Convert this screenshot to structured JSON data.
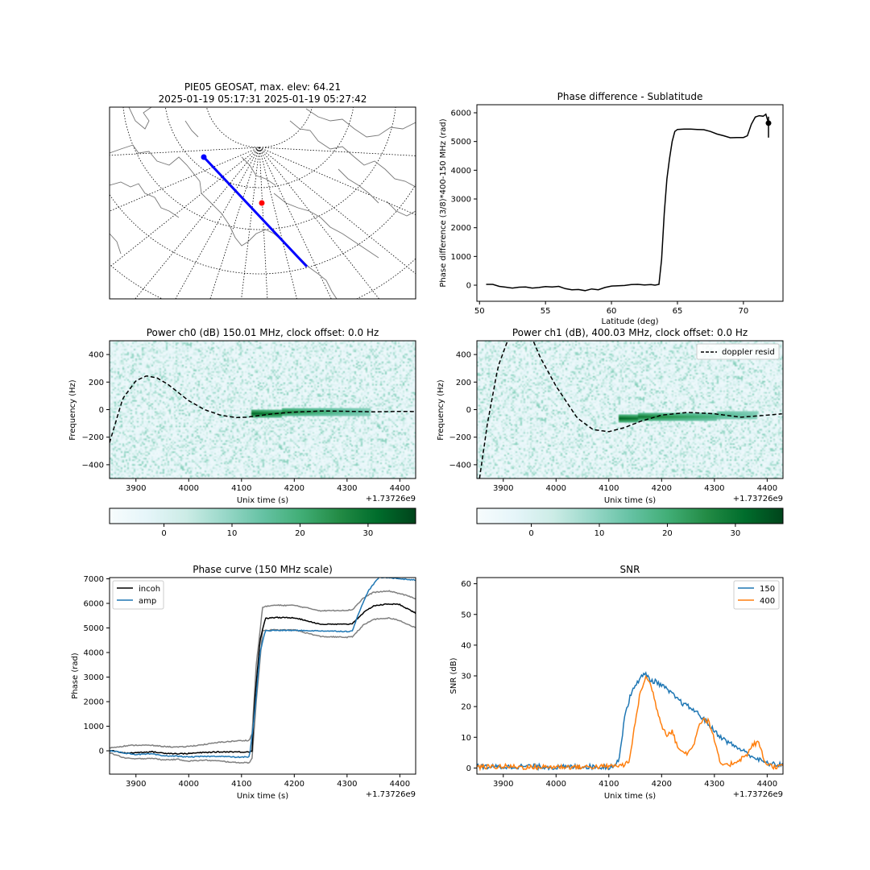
{
  "chart_data": [
    {
      "id": "map",
      "type": "map",
      "title_line1": "PIE05 GEOSAT, max. elev: 64.21",
      "title_line2": "2025-01-19 05:17:31 2025-01-19 05:27:42",
      "track_color": "#0000ff",
      "station_color": "#ff0000",
      "grid": true
    },
    {
      "id": "phase_lat",
      "type": "line",
      "title": "Phase difference - Sublatitude",
      "xlabel": "Latitude (deg)",
      "ylabel": "Phase difference (3/8)*400-150 MHz (rad)",
      "xlim": [
        49.8,
        73.0
      ],
      "ylim": [
        -560,
        6280
      ],
      "xticks": [
        50,
        55,
        60,
        65,
        70
      ],
      "yticks": [
        0,
        1000,
        2000,
        3000,
        4000,
        5000,
        6000
      ],
      "series": [
        {
          "color": "#000000",
          "x": [
            50.5,
            51.0,
            51.5,
            52.0,
            52.5,
            53.0,
            53.5,
            54.0,
            54.5,
            55.0,
            55.5,
            56.0,
            56.5,
            57.0,
            57.5,
            58.0,
            58.5,
            59.0,
            59.5,
            60.0,
            60.5,
            61.0,
            61.5,
            62.0,
            62.5,
            63.0,
            63.3,
            63.6,
            63.8,
            64.0,
            64.2,
            64.4,
            64.6,
            64.8,
            65.0,
            65.5,
            66.0,
            66.5,
            67.0,
            67.5,
            68.0,
            68.5,
            69.0,
            69.5,
            70.0,
            70.3,
            70.6,
            70.9,
            71.2,
            71.5,
            71.7,
            71.9
          ],
          "y": [
            30,
            30,
            -40,
            -70,
            -100,
            -70,
            -60,
            -100,
            -80,
            -50,
            -60,
            -40,
            -120,
            -160,
            -150,
            -190,
            -130,
            -160,
            -80,
            -30,
            -20,
            -10,
            20,
            30,
            10,
            20,
            0,
            30,
            900,
            2500,
            3700,
            4400,
            5000,
            5350,
            5420,
            5430,
            5430,
            5420,
            5410,
            5350,
            5260,
            5200,
            5130,
            5140,
            5140,
            5200,
            5600,
            5850,
            5900,
            5880,
            5950,
            5640
          ]
        }
      ],
      "endpoint": {
        "x": 71.9,
        "y": 5640
      }
    },
    {
      "id": "power_ch0",
      "type": "heatmap",
      "title": "Power ch0 (dB) 150.01 MHz, clock offset: 0.0 Hz",
      "xlabel": "Unix time (s)",
      "ylabel": "Frequency (Hz)",
      "offset_label": "+1.73726e9",
      "xlim": [
        3850,
        4430
      ],
      "ylim": [
        -500,
        500
      ],
      "xticks": [
        3900,
        4000,
        4100,
        4200,
        4300,
        4400
      ],
      "yticks": [
        -400,
        -200,
        0,
        200,
        400
      ],
      "colorbar": {
        "cmin": -8,
        "cmax": 37,
        "ticks": [
          0,
          10,
          20,
          30
        ],
        "colors": [
          "#f7fcfd",
          "#e5f5f9",
          "#ccece6",
          "#99d8c9",
          "#66c2a4",
          "#41ae76",
          "#238b45",
          "#006d2c",
          "#00441b"
        ]
      },
      "doppler_curve": {
        "x": [
          3850,
          3875,
          3900,
          3920,
          3940,
          3960,
          3980,
          4000,
          4030,
          4060,
          4090,
          4110,
          4130,
          4160,
          4200,
          4250,
          4300,
          4350,
          4400,
          4430
        ],
        "y": [
          -240,
          80,
          210,
          245,
          230,
          185,
          125,
          65,
          0,
          -40,
          -58,
          -55,
          -45,
          -30,
          -18,
          -10,
          -12,
          -16,
          -13,
          -14
        ]
      },
      "signal_band": {
        "x_start": 4120,
        "x_end": 4345,
        "y_start": -20,
        "y_end": -10
      }
    },
    {
      "id": "power_ch1",
      "type": "heatmap",
      "title": "Power ch1 (dB), 400.03 MHz, clock offset: 0.0 Hz",
      "xlabel": "Unix time (s)",
      "ylabel": "Frequency (Hz)",
      "offset_label": "+1.73726e9",
      "xlim": [
        3850,
        4430
      ],
      "ylim": [
        -500,
        500
      ],
      "xticks": [
        3900,
        4000,
        4100,
        4200,
        4300,
        4400
      ],
      "yticks": [
        -400,
        -200,
        0,
        200,
        400
      ],
      "legend": {
        "entries": [
          "doppler resid"
        ],
        "placement": "upper right"
      },
      "colorbar": {
        "cmin": -8,
        "cmax": 37,
        "ticks": [
          0,
          10,
          20,
          30
        ],
        "colors": [
          "#f7fcfd",
          "#e5f5f9",
          "#ccece6",
          "#99d8c9",
          "#66c2a4",
          "#41ae76",
          "#238b45",
          "#006d2c",
          "#00441b"
        ]
      },
      "doppler_curve": {
        "x": [
          3855,
          3870,
          3890,
          3910,
          3930,
          3950,
          3970,
          4000,
          4040,
          4070,
          4100,
          4130,
          4160,
          4200,
          4250,
          4300,
          4350,
          4400,
          4430
        ],
        "y": [
          -500,
          -100,
          310,
          520,
          660,
          560,
          380,
          170,
          -60,
          -145,
          -160,
          -130,
          -85,
          -40,
          -20,
          -30,
          -55,
          -40,
          -30
        ]
      },
      "signal_band": {
        "x_start": 4120,
        "x_end": 4380,
        "y_start": -55,
        "y_end": -35
      }
    },
    {
      "id": "phase_curve",
      "type": "line",
      "title": "Phase curve (150 MHz scale)",
      "xlabel": "Unix time (s)",
      "ylabel": "Phase (rad)",
      "offset_label": "+1.73726e9",
      "xlim": [
        3850,
        4430
      ],
      "ylim": [
        -950,
        7050
      ],
      "xticks": [
        3900,
        4000,
        4100,
        4200,
        4300,
        4400
      ],
      "yticks": [
        0,
        1000,
        2000,
        3000,
        4000,
        5000,
        6000,
        7000
      ],
      "legend": {
        "entries": [
          "incoh",
          "amp"
        ],
        "placement": "upper left"
      },
      "series": [
        {
          "name": "incoh",
          "color": "#000000",
          "x": [
            3850,
            3880,
            3900,
            3930,
            3950,
            3980,
            4000,
            4020,
            4050,
            4080,
            4100,
            4115,
            4120,
            4125,
            4135,
            4145,
            4160,
            4200,
            4250,
            4300,
            4310,
            4330,
            4350,
            4380,
            4400,
            4430
          ],
          "y": [
            20,
            -100,
            -70,
            -40,
            -90,
            -120,
            -110,
            -80,
            -50,
            -40,
            -50,
            -40,
            0,
            2000,
            4500,
            5380,
            5420,
            5420,
            5150,
            5150,
            5180,
            5600,
            5900,
            5980,
            5950,
            5600
          ]
        },
        {
          "name": "amp",
          "color": "#1f77b4",
          "x": [
            3850,
            3870,
            3900,
            3930,
            3950,
            3980,
            4000,
            4030,
            4060,
            4090,
            4115,
            4125,
            4135,
            4145,
            4160,
            4200,
            4250,
            4300,
            4310,
            4320,
            4340,
            4360,
            4380,
            4400,
            4430
          ],
          "y": [
            0,
            -60,
            -150,
            -130,
            -200,
            -220,
            -250,
            -230,
            -220,
            -260,
            -250,
            1500,
            4000,
            4880,
            4900,
            4900,
            4880,
            4860,
            4870,
            5500,
            6500,
            7050,
            7050,
            7000,
            6950
          ]
        },
        {
          "name": "",
          "color": "#808080",
          "x": [
            3850,
            3880,
            3900,
            3930,
            3950,
            3980,
            4000,
            4030,
            4060,
            4090,
            4115,
            4120,
            4128,
            4140,
            4160,
            4200,
            4250,
            4300,
            4310,
            4330,
            4350,
            4380,
            4400,
            4430
          ],
          "y": [
            120,
            200,
            230,
            220,
            180,
            150,
            180,
            260,
            350,
            400,
            430,
            700,
            3500,
            5850,
            5920,
            5920,
            5700,
            5720,
            5740,
            6200,
            6450,
            6500,
            6400,
            6200
          ]
        },
        {
          "name": "",
          "color": "#808080",
          "x": [
            3850,
            3880,
            3900,
            3930,
            3950,
            3980,
            4000,
            4030,
            4060,
            4090,
            4115,
            4120,
            4128,
            4140,
            4160,
            4200,
            4250,
            4300,
            4310,
            4330,
            4350,
            4380,
            4400,
            4430
          ],
          "y": [
            -80,
            -300,
            -330,
            -300,
            -370,
            -350,
            -420,
            -380,
            -420,
            -480,
            -480,
            -300,
            2000,
            4900,
            4920,
            4920,
            4650,
            4620,
            4640,
            5100,
            5350,
            5400,
            5300,
            5000
          ]
        }
      ]
    },
    {
      "id": "snr",
      "type": "line",
      "title": "SNR",
      "xlabel": "Unix time (s)",
      "ylabel": "SNR (dB)",
      "offset_label": "+1.73726e9",
      "xlim": [
        3850,
        4430
      ],
      "ylim": [
        -2,
        62
      ],
      "xticks": [
        3900,
        4000,
        4100,
        4200,
        4300,
        4400
      ],
      "yticks": [
        0,
        10,
        20,
        30,
        40,
        50,
        60
      ],
      "legend": {
        "entries": [
          "150",
          "400"
        ],
        "placement": "upper right"
      },
      "series": [
        {
          "name": "150",
          "color": "#1f77b4",
          "x": [
            3850,
            3900,
            3950,
            4000,
            4050,
            4100,
            4110,
            4118,
            4125,
            4130,
            4140,
            4150,
            4160,
            4170,
            4180,
            4190,
            4200,
            4220,
            4240,
            4260,
            4280,
            4300,
            4320,
            4340,
            4360,
            4380,
            4400,
            4420,
            4430
          ],
          "y": [
            0.5,
            0.3,
            0.6,
            0.2,
            0.5,
            0.3,
            0.8,
            2,
            10,
            17,
            23,
            27,
            29.5,
            30.5,
            28.5,
            28,
            27,
            24,
            21,
            19,
            16,
            12,
            9,
            7,
            5,
            3,
            1.5,
            1,
            1.5
          ]
        },
        {
          "name": "400",
          "color": "#ff7f0e",
          "x": [
            3850,
            3900,
            3950,
            4000,
            4050,
            4100,
            4130,
            4140,
            4150,
            4160,
            4170,
            4180,
            4190,
            4200,
            4210,
            4220,
            4230,
            4240,
            4250,
            4260,
            4270,
            4280,
            4290,
            4300,
            4310,
            4320,
            4340,
            4360,
            4375,
            4385,
            4395,
            4410,
            4430
          ],
          "y": [
            0.3,
            0.5,
            0.2,
            0.4,
            0.3,
            0.5,
            1,
            3,
            15,
            25,
            29.5,
            27,
            20,
            14,
            11,
            12,
            7,
            5,
            5,
            7,
            14,
            16,
            15,
            9,
            2,
            0.5,
            2,
            4,
            8,
            8,
            2,
            0.5,
            0.5
          ]
        }
      ]
    }
  ]
}
